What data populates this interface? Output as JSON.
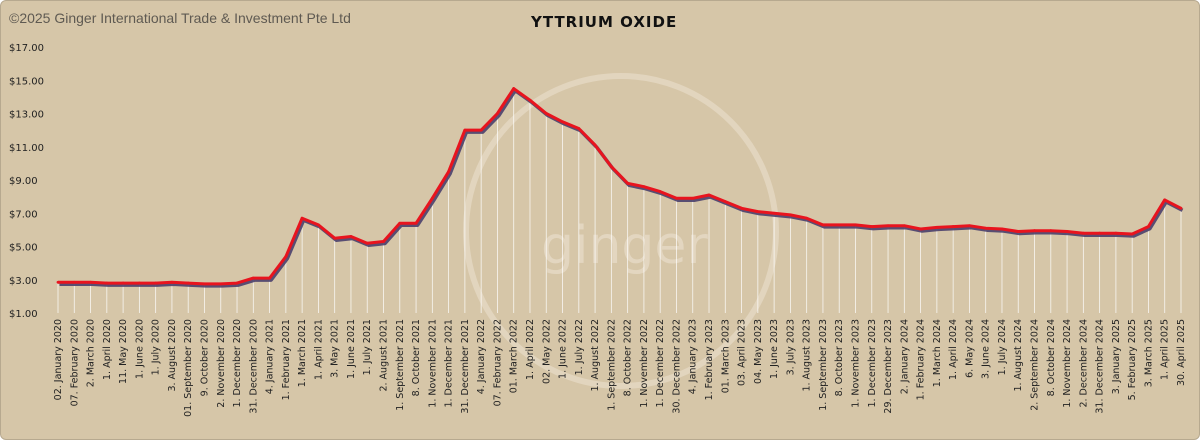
{
  "copyright": "©2025 Ginger International Trade & Investment Pte Ltd",
  "watermark": "ginger",
  "colors": {
    "background": "#d6c6a8",
    "line": "#e8141e",
    "shadow": "#4a3f6b",
    "drop": "#ffffff"
  },
  "chart_data": {
    "type": "line",
    "title": "YTTRIUM OXIDE",
    "xlabel": "",
    "ylabel": "",
    "ylim": [
      1,
      17
    ],
    "yticks": [
      "$17.00",
      "$15.00",
      "$13.00",
      "$11.00",
      "$9.00",
      "$7.00",
      "$5.00",
      "$3.00",
      "$1.00"
    ],
    "grid": false,
    "legend": "none",
    "categories": [
      "02. January 2020",
      "07. February 2020",
      "2. March 2020",
      "1. April 2020",
      "11. May 2020",
      "1. June 2020",
      "1. July 2020",
      "3. August 2020",
      "01. September 2020",
      "9. October 2020",
      "2. November 2020",
      "1. December 2020",
      "31. December 2020",
      "4. January 2021",
      "1. February 2021",
      "1. March 2021",
      "1. April 2021",
      "3. May 2021",
      "1. June 2021",
      "1. July 2021",
      "2. August 2021",
      "1. September 2021",
      "8. October 2021",
      "1. November 2021",
      "1. December 2021",
      "31. December 2021",
      "4. January 2022",
      "07. February 2022",
      "01. March 2022",
      "1. April 2022",
      "02. May 2022",
      "1. June 2022",
      "1. July 2022",
      "1. August 2022",
      "1. September 2022",
      "8. October 2022",
      "1. November 2022",
      "1. December 2022",
      "30. December 2022",
      "4. January 2023",
      "1. February 2023",
      "01. March 2023",
      "03. April 2023",
      "04. May 2023",
      "1. June 2023",
      "3. July 2023",
      "1. August 2023",
      "1. September 2023",
      "8. October 2023",
      "1. November 2023",
      "1. December 2023",
      "29. December 2023",
      "2. January 2024",
      "1. February 2024",
      "1. March 2024",
      "1. April 2024",
      "6. May 2024",
      "3. June 2024",
      "1. July 2024",
      "1. August 2024",
      "2. September 2024",
      "8. October 2024",
      "1. November 2024",
      "2. December 2024",
      "31. December 2024",
      "3. January 2025",
      "5. February 2025",
      "3. March 2025",
      "1. April 2025",
      "30. April 2025"
    ],
    "series": [
      {
        "values": [
          2.85,
          2.85,
          2.85,
          2.8,
          2.8,
          2.8,
          2.8,
          2.85,
          2.8,
          2.75,
          2.75,
          2.8,
          3.1,
          3.1,
          4.4,
          6.7,
          6.3,
          5.5,
          5.6,
          5.2,
          5.3,
          6.4,
          6.4,
          7.9,
          9.5,
          12.0,
          12.0,
          13.0,
          14.5,
          13.8,
          13.0,
          12.5,
          12.1,
          11.1,
          9.8,
          8.8,
          8.6,
          8.3,
          7.9,
          7.9,
          8.1,
          7.7,
          7.3,
          7.1,
          7.0,
          6.9,
          6.7,
          6.3,
          6.3,
          6.3,
          6.2,
          6.25,
          6.25,
          6.05,
          6.15,
          6.2,
          6.25,
          6.1,
          6.05,
          5.9,
          5.95,
          5.95,
          5.9,
          5.8,
          5.8,
          5.8,
          5.75,
          6.2,
          7.8,
          7.3
        ]
      }
    ]
  }
}
